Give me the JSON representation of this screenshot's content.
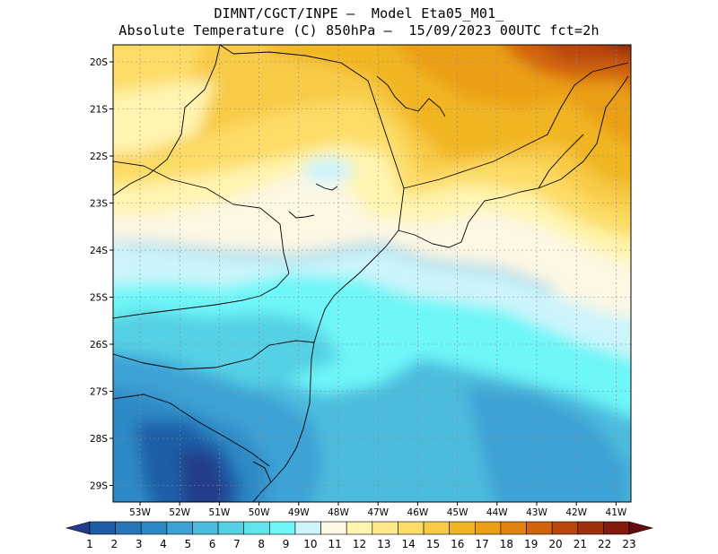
{
  "title": {
    "line1": "DIMNT/CGCT/INPE –  Model Eta05_M01_",
    "line2": "Absolute Temperature (C) 850hPa –  15/09/2023 00UTC fct=2h"
  },
  "axes": {
    "lon_labels": [
      "53W",
      "52W",
      "51W",
      "50W",
      "49W",
      "48W",
      "47W",
      "46W",
      "45W",
      "44W",
      "43W",
      "42W",
      "41W"
    ],
    "lat_labels": [
      "20S",
      "21S",
      "22S",
      "23S",
      "24S",
      "25S",
      "26S",
      "27S",
      "28S",
      "29S"
    ]
  },
  "colorbar": {
    "labels": [
      "1",
      "2",
      "3",
      "4",
      "5",
      "6",
      "7",
      "8",
      "9",
      "10",
      "11",
      "12",
      "13",
      "14",
      "15",
      "16",
      "17",
      "18",
      "19",
      "20",
      "21",
      "22",
      "23"
    ],
    "colors": [
      "#213d8a",
      "#1f5ea7",
      "#2676b8",
      "#2e8ac6",
      "#3ca2d5",
      "#4bbcde",
      "#55d0e4",
      "#5fe4ec",
      "#6ef6f8",
      "#cdf4fb",
      "#fdf7e4",
      "#fff4b0",
      "#ffe88a",
      "#fddd68",
      "#f8cb47",
      "#f1b523",
      "#eb9f14",
      "#e2820e",
      "#d1640d",
      "#b9470e",
      "#9e300e",
      "#821b0e",
      "#650b0e"
    ]
  },
  "chart_data": {
    "type": "heatmap",
    "variable": "Absolute Temperature (C) 850hPa",
    "valid": "15/09/2023 00UTC fct=2h",
    "lon_range": [
      -53.7,
      -40.5
    ],
    "lat_range": [
      -29.5,
      -19.7
    ],
    "scale_min": 1,
    "scale_max": 23,
    "regions": [
      {
        "name": "far-south-west",
        "temp": 4
      },
      {
        "name": "south-central",
        "temp": 5
      },
      {
        "name": "south-coast",
        "temp": 7
      },
      {
        "name": "central-band",
        "temp": 8
      },
      {
        "name": "cool-transition",
        "temp": 11
      },
      {
        "name": "central-north",
        "temp": 13
      },
      {
        "name": "north-interior",
        "temp": 15
      },
      {
        "name": "north-east",
        "temp": 17
      },
      {
        "name": "far-north-east",
        "temp": 19
      }
    ]
  }
}
